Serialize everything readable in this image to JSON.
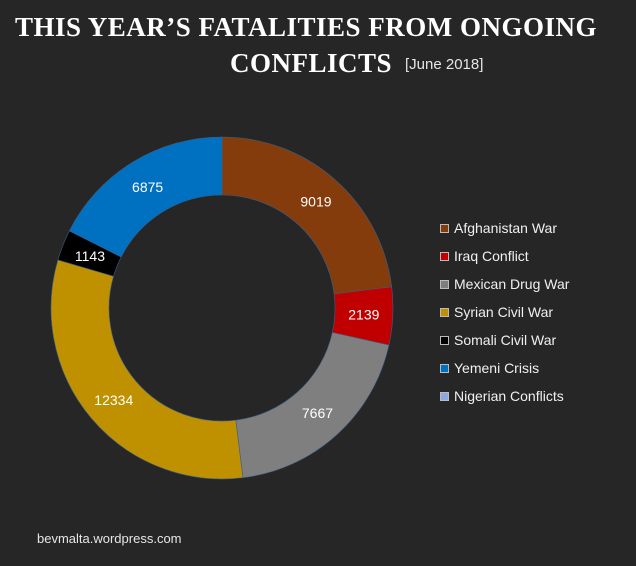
{
  "chart_data": {
    "type": "pie",
    "variant": "donut",
    "title_line1": "THIS YEAR’S FATALITIES FROM ONGOING",
    "title_line2": "CONFLICTS",
    "subtitle": "[June 2018]",
    "legend_position": "right",
    "series": [
      {
        "name": "Afghanistan War",
        "value": 9019,
        "color": "#843c0c"
      },
      {
        "name": "Iraq Conflict",
        "value": 2139,
        "color": "#c00000"
      },
      {
        "name": "Mexican Drug War",
        "value": 7667,
        "color": "#7f7f7f"
      },
      {
        "name": "Syrian Civil War",
        "value": 12334,
        "color": "#bf9000"
      },
      {
        "name": "Somali Civil War",
        "value": 1143,
        "color": "#000000"
      },
      {
        "name": "Yemeni Crisis",
        "value": 6875,
        "color": "#0070c0"
      },
      {
        "name": "Nigerian Conflicts",
        "value": 0,
        "color": "#8ea9db"
      }
    ]
  },
  "footer": "bevmalta.wordpress.com"
}
